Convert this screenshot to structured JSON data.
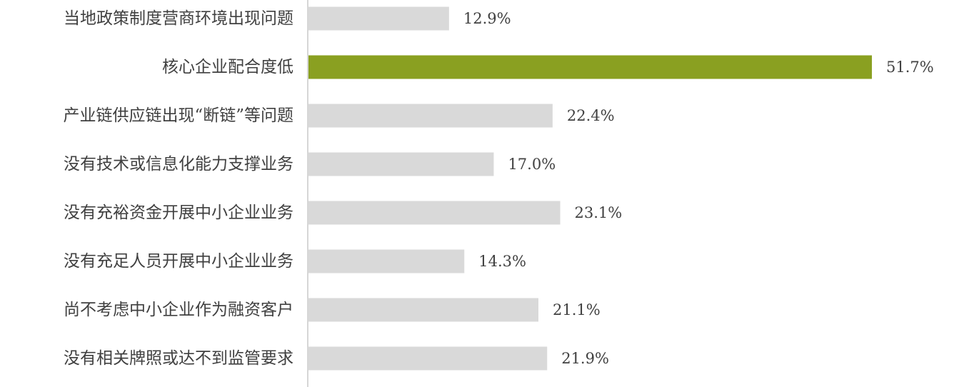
{
  "chart_data": {
    "type": "bar",
    "orientation": "horizontal",
    "categories": [
      "当地政策制度营商环境出现问题",
      "核心企业配合度低",
      "产业链供应链出现“断链”等问题",
      "没有技术或信息化能力支撑业务",
      "没有充裕资金开展中小企业业务",
      "没有充足人员开展中小企业业务",
      "尚不考虑中小企业作为融资客户",
      "没有相关牌照或达不到监管要求"
    ],
    "values": [
      12.9,
      51.7,
      22.4,
      17.0,
      23.1,
      14.3,
      21.1,
      21.9
    ],
    "value_labels": [
      "12.9%",
      "51.7%",
      "22.4%",
      "17.0%",
      "23.1%",
      "14.3%",
      "21.1%",
      "21.9%"
    ],
    "xlim": [
      0,
      55
    ],
    "highlight_index": 1,
    "colors": {
      "default": "#d9d9d9",
      "highlight": "#8aa021",
      "axis": "#c8c8c8"
    },
    "grid": false,
    "legend": "none"
  }
}
